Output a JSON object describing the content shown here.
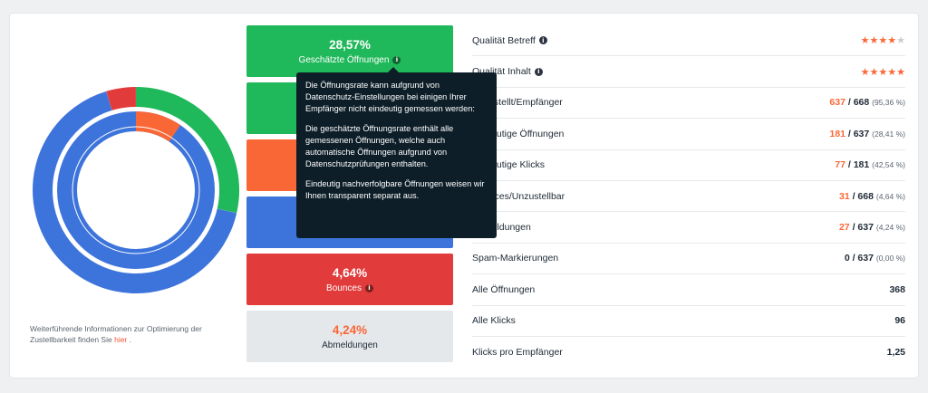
{
  "donut": {
    "outer": [
      {
        "name": "geschaetzte-oeffnungen",
        "fraction": 0.2857,
        "color": "#1fb85a"
      },
      {
        "name": "rest",
        "fraction": 0.6679,
        "color": "#3d74db"
      },
      {
        "name": "bounces",
        "fraction": 0.0464,
        "color": "#e23b3b"
      }
    ],
    "inner_fraction": 0.0954,
    "inner_color": "#fa6737"
  },
  "footnote": {
    "text": "Weiterführende Informationen zur Optimierung der Zustellbarkeit finden Sie",
    "link": "hier",
    "end": "."
  },
  "tiles": [
    {
      "value": "28,57%",
      "label": "Geschätzte Öffnungen",
      "info": "i"
    },
    {
      "value": "",
      "label": "",
      "info": ""
    },
    {
      "value": "",
      "label": "",
      "info": ""
    },
    {
      "value": "",
      "label": "",
      "info": ""
    },
    {
      "value": "4,64%",
      "label": "Bounces",
      "info": "i"
    },
    {
      "value": "4,24%",
      "label": "Abmeldungen",
      "info": ""
    }
  ],
  "tooltip": {
    "p1": "Die Öffnungsrate kann aufgrund von Datenschutz-Einstellungen bei einigen Ihrer Empfänger nicht eindeutig gemessen werden:",
    "p2": "Die geschätzte Öffnungsrate enthält alle gemessenen Öffnungen, welche auch automatische Öffnungen aufgrund von Datenschutzprüfungen enthalten.",
    "p3": "Eindeutig nachverfolgbare Öffnungen weisen wir Ihnen transparent separat aus."
  },
  "stats": [
    {
      "label": "Qualität Betreff",
      "info": "i",
      "rating": 4
    },
    {
      "label": "Qualität Inhalt",
      "info": "i",
      "rating": 5
    },
    {
      "label": "Zugestellt/Empfänger",
      "hi": "637",
      "sep": " / ",
      "total": "668",
      "pct": "(95,36 %)"
    },
    {
      "label": "Eindeutige Öffnungen",
      "hi": "181",
      "sep": " / ",
      "total": "637",
      "pct": "(28,41 %)"
    },
    {
      "label": "Eindeutige Klicks",
      "hi": "77",
      "sep": " / ",
      "total": "181",
      "pct": "(42,54 %)"
    },
    {
      "label": "Bounces/Unzustellbar",
      "hi": "31",
      "sep": " / ",
      "total": "668",
      "pct": "(4,64 %)"
    },
    {
      "label": "Abmeldungen",
      "hi": "27",
      "sep": " / ",
      "total": "637",
      "pct": "(4,24 %)"
    },
    {
      "label": "Spam-Markierungen",
      "plain": "0",
      "sep": " / ",
      "total": "637",
      "pct": "(0,00 %)"
    },
    {
      "label": "Alle Öffnungen",
      "total": "368"
    },
    {
      "label": "Alle Klicks",
      "total": "96"
    },
    {
      "label": "Klicks pro Empfänger",
      "total": "1,25"
    }
  ],
  "star_glyph": "★"
}
